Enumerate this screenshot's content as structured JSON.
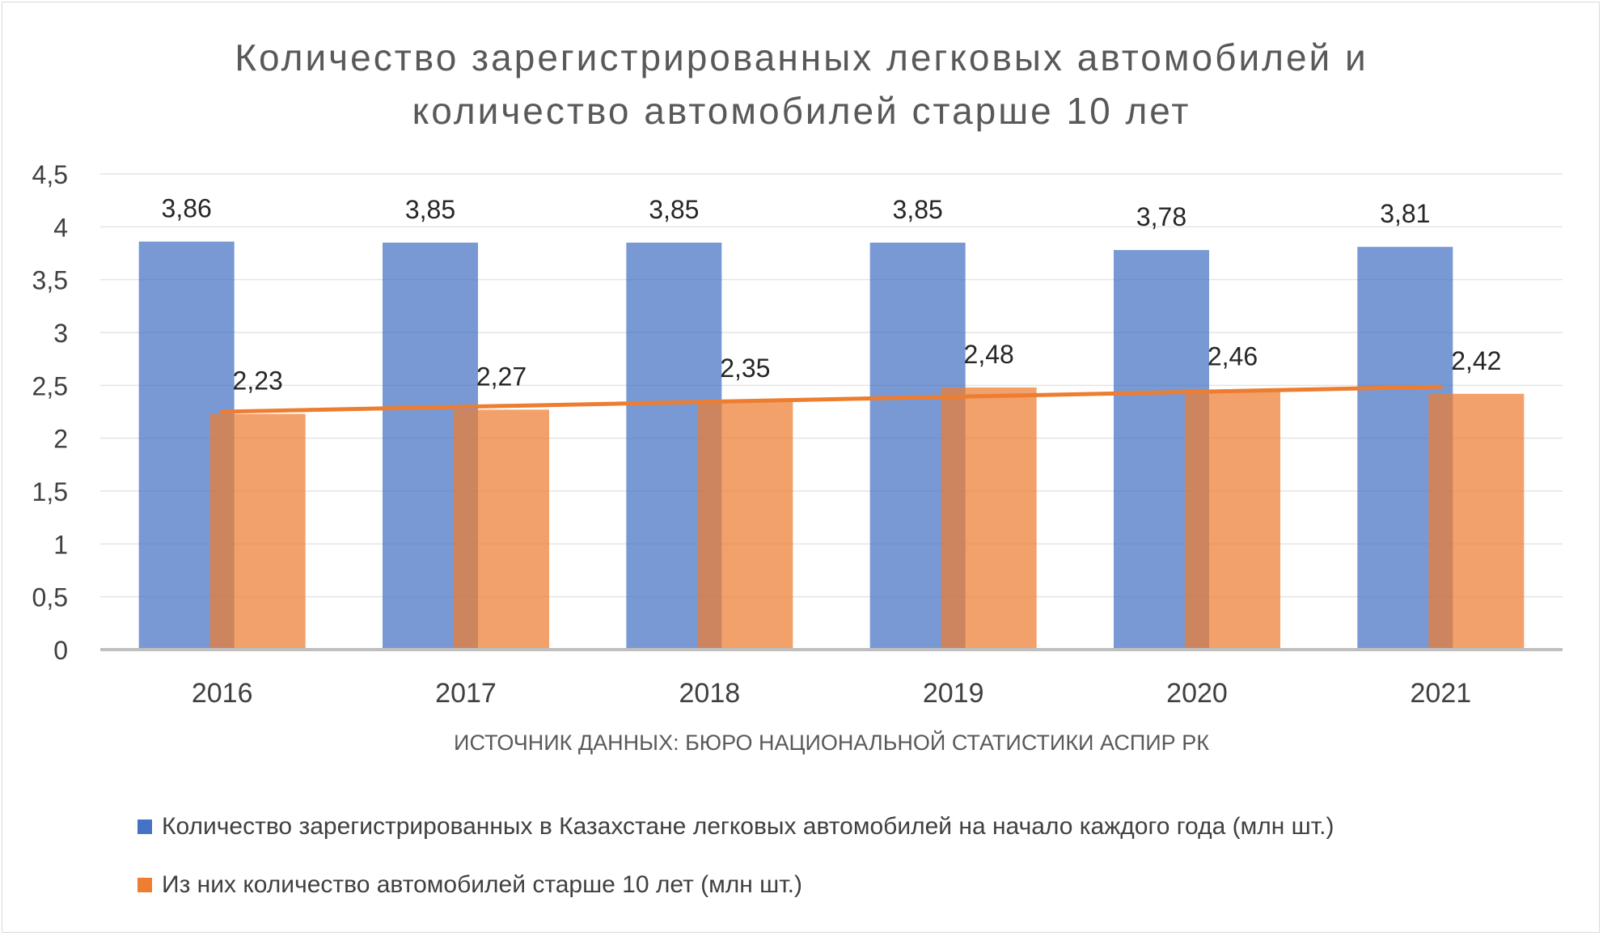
{
  "chart_data": {
    "type": "bar",
    "title": "Количество зарегистрированных легковых автомобилей и количество автомобилей старше 10 лет",
    "title_lines": [
      "Количество зарегистрированных легковых автомобилей и",
      "количество автомобилей старше 10 лет"
    ],
    "xlabel": "ИСТОЧНИК ДАННЫХ: БЮРО НАЦИОНАЛЬНОЙ СТАТИСТИКИ АСПИР РК",
    "ylabel": "",
    "categories": [
      "2016",
      "2017",
      "2018",
      "2019",
      "2020",
      "2021"
    ],
    "ylim": [
      0,
      4.5
    ],
    "yticks": [
      "0",
      "0,5",
      "1",
      "1,5",
      "2",
      "2,5",
      "3",
      "3,5",
      "4",
      "4,5"
    ],
    "grid": true,
    "legend_position": "bottom",
    "series": [
      {
        "name": "Количество зарегистрированных в Казахстане легковых автомобилей на начало каждого года (млн шт.)",
        "values": [
          3.86,
          3.85,
          3.85,
          3.85,
          3.78,
          3.81
        ],
        "labels": [
          "3,86",
          "3,85",
          "3,85",
          "3,85",
          "3,78",
          "3,81"
        ],
        "color": "#4472c4"
      },
      {
        "name": "Из них количество автомобилей старше 10 лет (млн шт.)",
        "values": [
          2.23,
          2.27,
          2.35,
          2.48,
          2.46,
          2.42
        ],
        "labels": [
          "2,23",
          "2,27",
          "2,35",
          "2,48",
          "2,46",
          "2,42"
        ],
        "color": "#ed7d31"
      }
    ],
    "trendline": {
      "series": 1,
      "type": "linear",
      "color": "#ed7d31"
    }
  }
}
